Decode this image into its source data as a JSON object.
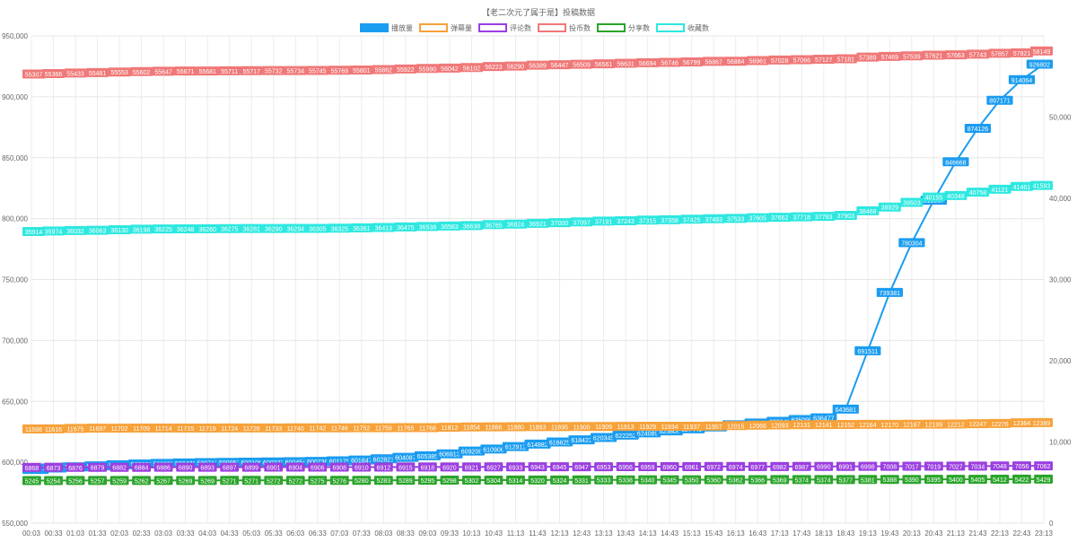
{
  "chart_data": {
    "type": "line",
    "title": "【老二次元了属于是】投稿数据",
    "x": [
      "00:03",
      "00:33",
      "01:03",
      "01:33",
      "02:03",
      "02:33",
      "03:03",
      "03:33",
      "04:03",
      "04:33",
      "05:03",
      "05:33",
      "06:03",
      "06:33",
      "07:03",
      "07:33",
      "08:03",
      "08:33",
      "09:03",
      "09:33",
      "10:13",
      "10:43",
      "11:13",
      "11:43",
      "12:13",
      "12:43",
      "13:13",
      "13:43",
      "14:13",
      "14:43",
      "15:13",
      "15:43",
      "16:13",
      "16:43",
      "17:13",
      "17:43",
      "18:13",
      "18:43",
      "19:13",
      "19:43",
      "20:13",
      "20:43",
      "21:13",
      "21:43",
      "22:13",
      "22:43",
      "23:13"
    ],
    "y_left": {
      "min": 550000,
      "max": 950000,
      "ticks": [
        "550,000",
        "600,000",
        "650,000",
        "700,000",
        "750,000",
        "800,000",
        "850,000",
        "900,000",
        "950,000"
      ]
    },
    "y_right": {
      "min": 0,
      "max": 60000,
      "ticks": [
        "0",
        "10,000",
        "20,000",
        "30,000",
        "40,000",
        "50,000"
      ]
    },
    "legend_position": "top",
    "grid": true,
    "series": [
      {
        "name": "播放量",
        "axis": "left",
        "color": "#1a9cf0",
        "values": [
          594089,
          595302,
          596225,
          597045,
          597935,
          598631,
          599098,
          599476,
          599712,
          599952,
          600106,
          600273,
          600454,
          600736,
          601175,
          601847,
          602821,
          604087,
          605385,
          606913,
          609206,
          610906,
          612912,
          614882,
          616625,
          618423,
          620345,
          622252,
          624089,
          625809,
          627441,
          629048,
          630750,
          632224,
          633646,
          635095,
          636477,
          643681,
          691511,
          739381,
          780304,
          815067,
          846668,
          874126,
          897171,
          914064,
          926802
        ],
        "labels": [
          "594089",
          "595302",
          "596225",
          "597045",
          "597935",
          "598631",
          "599098",
          "599476",
          "599712",
          "599952",
          "600106",
          "600273",
          "600454",
          "600736",
          "601175",
          "601847",
          "602821",
          "604087",
          "605385",
          "606913",
          "609206",
          "610906",
          "612912",
          "614882",
          "616625",
          "618423",
          "620345",
          "622252",
          "624089",
          "625809",
          "627441",
          "629048",
          "630750",
          "632224",
          "633646",
          "635095",
          "636477",
          "643681",
          "691511",
          "739381",
          "780304",
          "815067",
          "846668",
          "874126",
          "897171",
          "914064",
          "926802"
        ]
      },
      {
        "name": "弹幕量",
        "axis": "right",
        "color": "#f7a23a",
        "values": [
          11598,
          11616,
          11675,
          11697,
          11702,
          11709,
          11714,
          11715,
          11719,
          11724,
          11726,
          11733,
          11740,
          11742,
          11746,
          11752,
          11759,
          11765,
          11768,
          11812,
          11854,
          11866,
          11880,
          11893,
          11895,
          11900,
          11909,
          11913,
          11929,
          11934,
          11937,
          11957,
          12015,
          12066,
          12093,
          12131,
          12141,
          12152,
          12164,
          12170,
          12187,
          12199,
          12212,
          12247,
          12276,
          12364,
          12389
        ],
        "labels": [
          "11598",
          "11616",
          "11675",
          "11697",
          "11702",
          "11709",
          "11714",
          "11715",
          "11719",
          "11724",
          "11726",
          "11733",
          "11740",
          "11742",
          "11746",
          "11752",
          "11759",
          "11765",
          "11768",
          "11812",
          "11854",
          "11866",
          "11880",
          "11893",
          "11895",
          "11900",
          "11909",
          "11913",
          "11929",
          "11934",
          "11937",
          "11957",
          "12015",
          "12066",
          "12093",
          "12131",
          "12141",
          "12152",
          "12164",
          "12170",
          "12187",
          "12199",
          "12212",
          "12247",
          "12276",
          "12364",
          "12389"
        ]
      },
      {
        "name": "评论数",
        "axis": "right",
        "color": "#9b3fe0",
        "values": [
          6868,
          6873,
          6876,
          6879,
          6882,
          6884,
          6886,
          6890,
          6893,
          6897,
          6899,
          6901,
          6904,
          6906,
          6908,
          6910,
          6912,
          6915,
          6918,
          6920,
          6921,
          6927,
          6933,
          6943,
          6945,
          6947,
          6953,
          6956,
          6959,
          6960,
          6961,
          6972,
          6974,
          6977,
          6982,
          6987,
          6990,
          6991,
          6998,
          7008,
          7017,
          7019,
          7027,
          7034,
          7048,
          7056,
          7062
        ],
        "labels": [
          "6868",
          "6873",
          "6876",
          "6879",
          "6882",
          "6884",
          "6886",
          "6890",
          "6893",
          "6897",
          "6899",
          "6901",
          "6904",
          "6906",
          "6908",
          "6910",
          "6912",
          "6915",
          "6918",
          "6920",
          "6921",
          "6927",
          "6933",
          "6943",
          "6945",
          "6947",
          "6953",
          "6956",
          "6959",
          "6960",
          "6961",
          "6972",
          "6974",
          "6977",
          "6982",
          "6987",
          "6990",
          "6991",
          "6998",
          "7008",
          "7017",
          "7019",
          "7027",
          "7034",
          "7048",
          "7056",
          "7062"
        ]
      },
      {
        "name": "投币数",
        "axis": "right",
        "color": "#f07878",
        "values": [
          55307,
          55366,
          55433,
          55481,
          55553,
          55602,
          55647,
          55671,
          55681,
          55711,
          55717,
          55732,
          55734,
          55745,
          55769,
          55801,
          55862,
          55922,
          55990,
          56042,
          56102,
          56223,
          56290,
          56389,
          56447,
          56509,
          56561,
          56631,
          56694,
          56746,
          56799,
          56867,
          56884,
          56961,
          57028,
          57066,
          57127,
          57181,
          57389,
          57469,
          57539,
          57621,
          57663,
          57743,
          57857,
          57921,
          58149
        ],
        "labels": [
          "55307",
          "55366",
          "55433",
          "55481",
          "55553",
          "55602",
          "55647",
          "55671",
          "55681",
          "55711",
          "55717",
          "55732",
          "55734",
          "55745",
          "55769",
          "55801",
          "55862",
          "55922",
          "55990",
          "56042",
          "56102",
          "56223",
          "56290",
          "56389",
          "56447",
          "56509",
          "56561",
          "56631",
          "56694",
          "56746",
          "56799",
          "56867",
          "56884",
          "56961",
          "57028",
          "57066",
          "57127",
          "57181",
          "57389",
          "57469",
          "57539",
          "57621",
          "57663",
          "57743",
          "57857",
          "57921",
          "58149"
        ]
      },
      {
        "name": "分享数",
        "axis": "right",
        "color": "#2aa52a",
        "values": [
          5245,
          5254,
          5256,
          5257,
          5259,
          5262,
          5267,
          5269,
          5269,
          5271,
          5271,
          5272,
          5272,
          5275,
          5276,
          5280,
          5283,
          5289,
          5295,
          5298,
          5302,
          5304,
          5314,
          5320,
          5324,
          5331,
          5333,
          5338,
          5340,
          5345,
          5350,
          5360,
          5362,
          5366,
          5369,
          5374,
          5374,
          5377,
          5381,
          5388,
          5390,
          5395,
          5400,
          5405,
          5412,
          5422,
          5429
        ],
        "labels": [
          "5245",
          "5254",
          "5256",
          "5257",
          "5259",
          "5262",
          "5267",
          "5269",
          "5269",
          "5271",
          "5271",
          "5272",
          "5272",
          "5275",
          "5276",
          "5280",
          "5283",
          "5289",
          "5295",
          "5298",
          "5302",
          "5304",
          "5314",
          "5320",
          "5324",
          "5331",
          "5333",
          "5338",
          "5340",
          "5345",
          "5350",
          "5360",
          "5362",
          "5366",
          "5369",
          "5374",
          "5374",
          "5377",
          "5381",
          "5388",
          "5390",
          "5395",
          "5400",
          "5405",
          "5412",
          "5422",
          "5429"
        ]
      },
      {
        "name": "收藏数",
        "axis": "right",
        "color": "#2ee8e0",
        "values": [
          35914,
          35974,
          36032,
          36063,
          36130,
          36198,
          36225,
          36248,
          36260,
          36275,
          36281,
          36290,
          36294,
          36305,
          36325,
          36361,
          36413,
          36475,
          36538,
          36583,
          36638,
          36765,
          36824,
          36921,
          37000,
          37097,
          37191,
          37243,
          37315,
          37358,
          37425,
          37483,
          37533,
          37605,
          37662,
          37718,
          37783,
          37903,
          38468,
          38929,
          39503,
          40155,
          40348,
          40758,
          41121,
          41461,
          41593
        ],
        "labels": [
          "35914",
          "35974",
          "36032",
          "36063",
          "36130",
          "36198",
          "36225",
          "36248",
          "36260",
          "36275",
          "36281",
          "36290",
          "36294",
          "36305",
          "36325",
          "36361",
          "36413",
          "36475",
          "36538",
          "36583",
          "36638",
          "36765",
          "36824",
          "36921",
          "37000",
          "37097",
          "37191",
          "37243",
          "37315",
          "37358",
          "37425",
          "37483",
          "37533",
          "37605",
          "37662",
          "37718",
          "37783",
          "37903",
          "38468",
          "38929",
          "39503",
          "40155",
          "40348",
          "40758",
          "41121",
          "41461",
          "41593"
        ]
      }
    ]
  }
}
